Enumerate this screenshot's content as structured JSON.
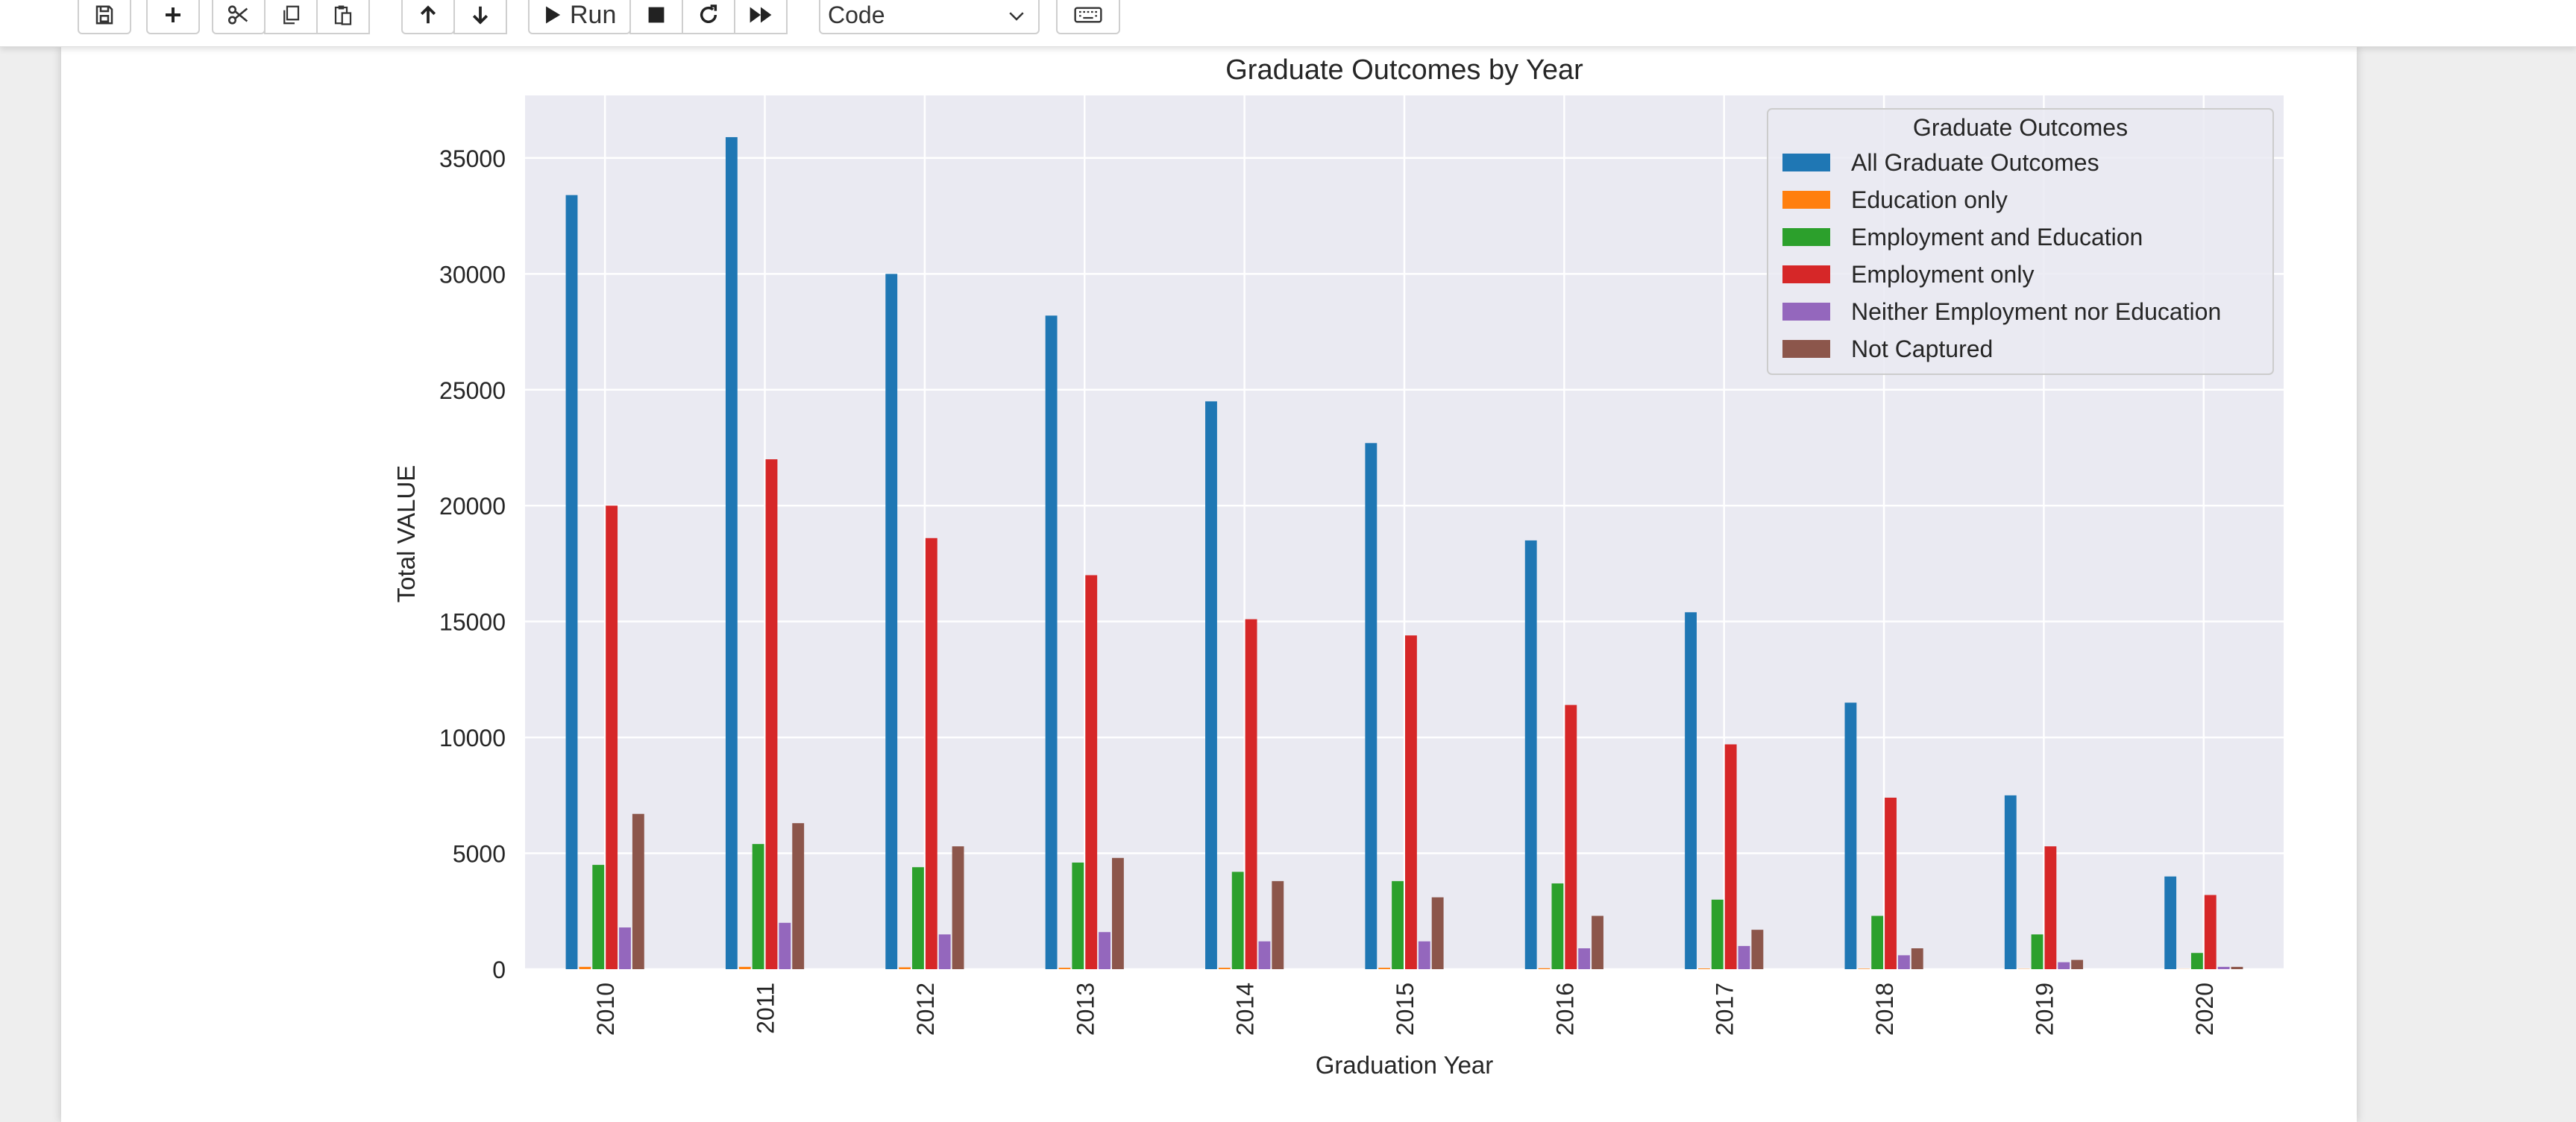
{
  "toolbar": {
    "run_label": "Run",
    "cell_type": "Code",
    "buttons": [
      {
        "name": "save-icon"
      },
      {
        "name": "plus-icon"
      },
      {
        "name": "cut-icon"
      },
      {
        "name": "copy-icon"
      },
      {
        "name": "paste-icon"
      },
      {
        "name": "arrow-up-icon"
      },
      {
        "name": "arrow-down-icon"
      },
      {
        "name": "stop-icon"
      },
      {
        "name": "restart-icon"
      },
      {
        "name": "fast-forward-icon"
      },
      {
        "name": "keyboard-icon"
      }
    ]
  },
  "chart_data": {
    "type": "bar",
    "title": "Graduate Outcomes by Year",
    "xlabel": "Graduation Year",
    "ylabel": "Total VALUE",
    "ylim": [
      0,
      37700
    ],
    "yticks": [
      0,
      5000,
      10000,
      15000,
      20000,
      25000,
      30000,
      35000
    ],
    "grid": true,
    "legend_title": "Graduate Outcomes",
    "legend_position": "top-right",
    "categories": [
      "2010",
      "2011",
      "2012",
      "2013",
      "2014",
      "2015",
      "2016",
      "2017",
      "2018",
      "2019",
      "2020"
    ],
    "series": [
      {
        "name": "All Graduate Outcomes",
        "color": "#1f77b4",
        "values": [
          33400,
          35900,
          30000,
          28200,
          24500,
          22700,
          18500,
          15400,
          11500,
          7500,
          4000
        ]
      },
      {
        "name": "Education only",
        "color": "#ff7f0e",
        "values": [
          100,
          100,
          80,
          60,
          60,
          60,
          40,
          30,
          20,
          10,
          5
        ]
      },
      {
        "name": "Employment and Education",
        "color": "#2ca02c",
        "values": [
          4500,
          5400,
          4400,
          4600,
          4200,
          3800,
          3700,
          3000,
          2300,
          1500,
          700
        ]
      },
      {
        "name": "Employment only",
        "color": "#d62728",
        "values": [
          20000,
          22000,
          18600,
          17000,
          15100,
          14400,
          11400,
          9700,
          7400,
          5300,
          3200
        ]
      },
      {
        "name": "Neither Employment nor Education",
        "color": "#9467bd",
        "values": [
          1800,
          2000,
          1500,
          1600,
          1200,
          1200,
          900,
          1000,
          600,
          300,
          100
        ]
      },
      {
        "name": "Not Captured",
        "color": "#8c564b",
        "values": [
          6700,
          6300,
          5300,
          4800,
          3800,
          3100,
          2300,
          1700,
          900,
          400,
          100
        ]
      }
    ]
  }
}
